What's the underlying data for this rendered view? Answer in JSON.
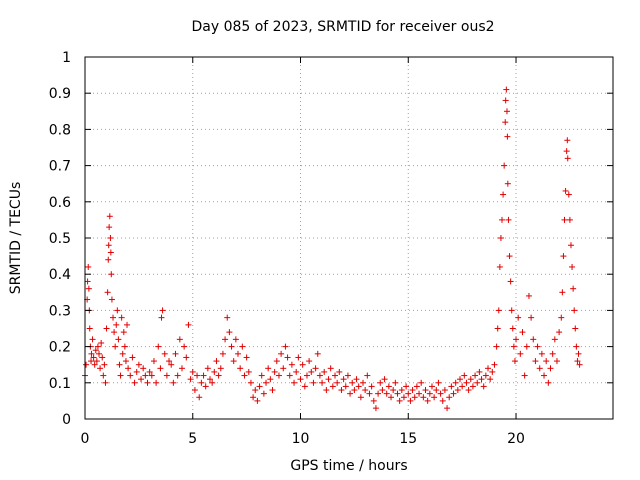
{
  "chart_data": {
    "type": "scatter",
    "title": "Day 085 of 2023, SRMTID for receiver ous2",
    "xlabel": "GPS time / hours",
    "ylabel": "SRMTID / TECUs",
    "xlim": [
      0,
      24.5
    ],
    "ylim": [
      0,
      1
    ],
    "xticks": [
      0,
      5,
      10,
      15,
      20
    ],
    "yticks": [
      0,
      0.1,
      0.2,
      0.3,
      0.4,
      0.5,
      0.6,
      0.7,
      0.8,
      0.9,
      1
    ],
    "xtick_labels": [
      "0",
      "5",
      "10",
      "15",
      "20"
    ],
    "ytick_labels": [
      "0",
      "0.1",
      "0.2",
      "0.3",
      "0.4",
      "0.5",
      "0.6",
      "0.7",
      "0.8",
      "0.9",
      "1"
    ],
    "grid": true,
    "marker": "plus",
    "color": "#e00000",
    "series": [
      {
        "name": "ous2",
        "points": [
          [
            0.0,
            0.12
          ],
          [
            0.05,
            0.15
          ],
          [
            0.1,
            0.33
          ],
          [
            0.12,
            0.38
          ],
          [
            0.15,
            0.42
          ],
          [
            0.18,
            0.36
          ],
          [
            0.2,
            0.3
          ],
          [
            0.22,
            0.25
          ],
          [
            0.25,
            0.2
          ],
          [
            0.28,
            0.16
          ],
          [
            0.3,
            0.18
          ],
          [
            0.35,
            0.22
          ],
          [
            0.4,
            0.17
          ],
          [
            0.45,
            0.15
          ],
          [
            0.5,
            0.19
          ],
          [
            0.55,
            0.16
          ],
          [
            0.6,
            0.2
          ],
          [
            0.65,
            0.18
          ],
          [
            0.7,
            0.14
          ],
          [
            0.75,
            0.21
          ],
          [
            0.8,
            0.17
          ],
          [
            0.85,
            0.12
          ],
          [
            0.9,
            0.15
          ],
          [
            0.95,
            0.1
          ],
          [
            1.0,
            0.25
          ],
          [
            1.05,
            0.35
          ],
          [
            1.08,
            0.44
          ],
          [
            1.1,
            0.48
          ],
          [
            1.12,
            0.53
          ],
          [
            1.15,
            0.56
          ],
          [
            1.18,
            0.5
          ],
          [
            1.2,
            0.46
          ],
          [
            1.22,
            0.4
          ],
          [
            1.25,
            0.33
          ],
          [
            1.3,
            0.28
          ],
          [
            1.35,
            0.24
          ],
          [
            1.4,
            0.2
          ],
          [
            1.45,
            0.26
          ],
          [
            1.5,
            0.3
          ],
          [
            1.55,
            0.22
          ],
          [
            1.6,
            0.15
          ],
          [
            1.65,
            0.12
          ],
          [
            1.7,
            0.28
          ],
          [
            1.75,
            0.18
          ],
          [
            1.8,
            0.24
          ],
          [
            1.85,
            0.2
          ],
          [
            1.9,
            0.16
          ],
          [
            1.95,
            0.26
          ],
          [
            2.0,
            0.14
          ],
          [
            2.1,
            0.12
          ],
          [
            2.2,
            0.17
          ],
          [
            2.3,
            0.1
          ],
          [
            2.4,
            0.13
          ],
          [
            2.5,
            0.15
          ],
          [
            2.6,
            0.11
          ],
          [
            2.7,
            0.14
          ],
          [
            2.8,
            0.12
          ],
          [
            2.9,
            0.1
          ],
          [
            3.0,
            0.13
          ],
          [
            3.1,
            0.12
          ],
          [
            3.2,
            0.16
          ],
          [
            3.3,
            0.1
          ],
          [
            3.4,
            0.2
          ],
          [
            3.5,
            0.14
          ],
          [
            3.55,
            0.28
          ],
          [
            3.6,
            0.3
          ],
          [
            3.7,
            0.18
          ],
          [
            3.8,
            0.12
          ],
          [
            3.9,
            0.16
          ],
          [
            4.0,
            0.15
          ],
          [
            4.1,
            0.1
          ],
          [
            4.2,
            0.18
          ],
          [
            4.3,
            0.12
          ],
          [
            4.4,
            0.22
          ],
          [
            4.5,
            0.14
          ],
          [
            4.6,
            0.2
          ],
          [
            4.7,
            0.17
          ],
          [
            4.8,
            0.26
          ],
          [
            4.9,
            0.11
          ],
          [
            5.0,
            0.13
          ],
          [
            5.1,
            0.08
          ],
          [
            5.2,
            0.12
          ],
          [
            5.3,
            0.06
          ],
          [
            5.4,
            0.1
          ],
          [
            5.5,
            0.12
          ],
          [
            5.6,
            0.09
          ],
          [
            5.7,
            0.14
          ],
          [
            5.8,
            0.11
          ],
          [
            5.9,
            0.1
          ],
          [
            6.0,
            0.13
          ],
          [
            6.1,
            0.16
          ],
          [
            6.2,
            0.12
          ],
          [
            6.3,
            0.14
          ],
          [
            6.4,
            0.18
          ],
          [
            6.5,
            0.22
          ],
          [
            6.6,
            0.28
          ],
          [
            6.7,
            0.24
          ],
          [
            6.8,
            0.2
          ],
          [
            6.9,
            0.16
          ],
          [
            7.0,
            0.22
          ],
          [
            7.1,
            0.18
          ],
          [
            7.2,
            0.14
          ],
          [
            7.3,
            0.2
          ],
          [
            7.4,
            0.12
          ],
          [
            7.5,
            0.17
          ],
          [
            7.6,
            0.13
          ],
          [
            7.7,
            0.1
          ],
          [
            7.8,
            0.06
          ],
          [
            7.9,
            0.08
          ],
          [
            8.0,
            0.05
          ],
          [
            8.1,
            0.09
          ],
          [
            8.2,
            0.12
          ],
          [
            8.3,
            0.07
          ],
          [
            8.4,
            0.1
          ],
          [
            8.5,
            0.14
          ],
          [
            8.6,
            0.11
          ],
          [
            8.7,
            0.08
          ],
          [
            8.8,
            0.13
          ],
          [
            8.9,
            0.16
          ],
          [
            9.0,
            0.12
          ],
          [
            9.1,
            0.18
          ],
          [
            9.2,
            0.14
          ],
          [
            9.3,
            0.2
          ],
          [
            9.4,
            0.17
          ],
          [
            9.5,
            0.12
          ],
          [
            9.6,
            0.15
          ],
          [
            9.7,
            0.1
          ],
          [
            9.8,
            0.13
          ],
          [
            9.9,
            0.17
          ],
          [
            10.0,
            0.11
          ],
          [
            10.1,
            0.15
          ],
          [
            10.2,
            0.09
          ],
          [
            10.3,
            0.12
          ],
          [
            10.4,
            0.16
          ],
          [
            10.5,
            0.13
          ],
          [
            10.6,
            0.1
          ],
          [
            10.7,
            0.14
          ],
          [
            10.8,
            0.18
          ],
          [
            10.9,
            0.12
          ],
          [
            11.0,
            0.1
          ],
          [
            11.1,
            0.13
          ],
          [
            11.2,
            0.08
          ],
          [
            11.3,
            0.11
          ],
          [
            11.4,
            0.14
          ],
          [
            11.5,
            0.09
          ],
          [
            11.6,
            0.12
          ],
          [
            11.7,
            0.1
          ],
          [
            11.8,
            0.13
          ],
          [
            11.9,
            0.08
          ],
          [
            12.0,
            0.11
          ],
          [
            12.1,
            0.09
          ],
          [
            12.2,
            0.12
          ],
          [
            12.3,
            0.07
          ],
          [
            12.4,
            0.1
          ],
          [
            12.5,
            0.08
          ],
          [
            12.6,
            0.11
          ],
          [
            12.7,
            0.09
          ],
          [
            12.8,
            0.06
          ],
          [
            12.9,
            0.1
          ],
          [
            13.0,
            0.08
          ],
          [
            13.1,
            0.12
          ],
          [
            13.2,
            0.07
          ],
          [
            13.3,
            0.09
          ],
          [
            13.4,
            0.05
          ],
          [
            13.5,
            0.03
          ],
          [
            13.6,
            0.07
          ],
          [
            13.7,
            0.1
          ],
          [
            13.8,
            0.08
          ],
          [
            13.9,
            0.11
          ],
          [
            14.0,
            0.07
          ],
          [
            14.1,
            0.09
          ],
          [
            14.2,
            0.06
          ],
          [
            14.3,
            0.08
          ],
          [
            14.4,
            0.1
          ],
          [
            14.5,
            0.07
          ],
          [
            14.6,
            0.05
          ],
          [
            14.7,
            0.08
          ],
          [
            14.8,
            0.06
          ],
          [
            14.9,
            0.09
          ],
          [
            15.0,
            0.07
          ],
          [
            15.1,
            0.05
          ],
          [
            15.2,
            0.08
          ],
          [
            15.3,
            0.06
          ],
          [
            15.4,
            0.09
          ],
          [
            15.5,
            0.07
          ],
          [
            15.6,
            0.1
          ],
          [
            15.7,
            0.06
          ],
          [
            15.8,
            0.08
          ],
          [
            15.9,
            0.05
          ],
          [
            16.0,
            0.07
          ],
          [
            16.1,
            0.09
          ],
          [
            16.2,
            0.06
          ],
          [
            16.3,
            0.08
          ],
          [
            16.4,
            0.1
          ],
          [
            16.5,
            0.07
          ],
          [
            16.6,
            0.05
          ],
          [
            16.7,
            0.08
          ],
          [
            16.8,
            0.03
          ],
          [
            16.9,
            0.06
          ],
          [
            17.0,
            0.09
          ],
          [
            17.1,
            0.07
          ],
          [
            17.2,
            0.1
          ],
          [
            17.3,
            0.08
          ],
          [
            17.4,
            0.11
          ],
          [
            17.5,
            0.09
          ],
          [
            17.6,
            0.12
          ],
          [
            17.7,
            0.1
          ],
          [
            17.8,
            0.08
          ],
          [
            17.9,
            0.11
          ],
          [
            18.0,
            0.09
          ],
          [
            18.1,
            0.12
          ],
          [
            18.2,
            0.1
          ],
          [
            18.3,
            0.13
          ],
          [
            18.4,
            0.11
          ],
          [
            18.5,
            0.09
          ],
          [
            18.6,
            0.12
          ],
          [
            18.7,
            0.14
          ],
          [
            18.8,
            0.11
          ],
          [
            18.9,
            0.13
          ],
          [
            19.0,
            0.15
          ],
          [
            19.1,
            0.2
          ],
          [
            19.15,
            0.25
          ],
          [
            19.2,
            0.3
          ],
          [
            19.25,
            0.42
          ],
          [
            19.3,
            0.5
          ],
          [
            19.35,
            0.55
          ],
          [
            19.4,
            0.62
          ],
          [
            19.45,
            0.7
          ],
          [
            19.5,
            0.82
          ],
          [
            19.52,
            0.88
          ],
          [
            19.55,
            0.91
          ],
          [
            19.58,
            0.85
          ],
          [
            19.6,
            0.78
          ],
          [
            19.62,
            0.65
          ],
          [
            19.65,
            0.55
          ],
          [
            19.7,
            0.45
          ],
          [
            19.75,
            0.38
          ],
          [
            19.8,
            0.3
          ],
          [
            19.85,
            0.25
          ],
          [
            19.9,
            0.2
          ],
          [
            19.95,
            0.16
          ],
          [
            20.0,
            0.22
          ],
          [
            20.1,
            0.28
          ],
          [
            20.2,
            0.18
          ],
          [
            20.3,
            0.24
          ],
          [
            20.4,
            0.12
          ],
          [
            20.5,
            0.2
          ],
          [
            20.6,
            0.34
          ],
          [
            20.7,
            0.28
          ],
          [
            20.8,
            0.22
          ],
          [
            20.9,
            0.16
          ],
          [
            21.0,
            0.2
          ],
          [
            21.1,
            0.14
          ],
          [
            21.2,
            0.18
          ],
          [
            21.3,
            0.12
          ],
          [
            21.4,
            0.16
          ],
          [
            21.5,
            0.1
          ],
          [
            21.6,
            0.14
          ],
          [
            21.7,
            0.18
          ],
          [
            21.8,
            0.22
          ],
          [
            21.9,
            0.16
          ],
          [
            22.0,
            0.24
          ],
          [
            22.1,
            0.28
          ],
          [
            22.15,
            0.35
          ],
          [
            22.2,
            0.45
          ],
          [
            22.25,
            0.55
          ],
          [
            22.3,
            0.63
          ],
          [
            22.35,
            0.74
          ],
          [
            22.38,
            0.77
          ],
          [
            22.4,
            0.72
          ],
          [
            22.45,
            0.62
          ],
          [
            22.5,
            0.55
          ],
          [
            22.55,
            0.48
          ],
          [
            22.6,
            0.42
          ],
          [
            22.65,
            0.36
          ],
          [
            22.7,
            0.3
          ],
          [
            22.75,
            0.25
          ],
          [
            22.8,
            0.2
          ],
          [
            22.85,
            0.16
          ],
          [
            22.9,
            0.18
          ],
          [
            22.95,
            0.15
          ]
        ]
      }
    ]
  }
}
